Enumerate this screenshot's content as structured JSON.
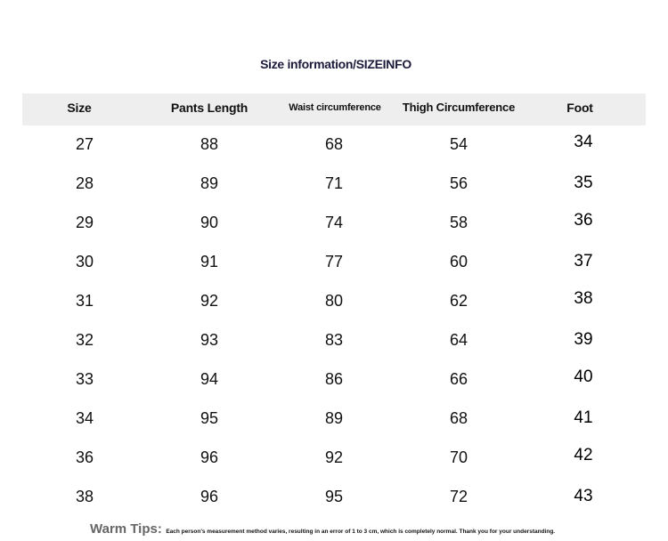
{
  "title": "Size information/SIZEINFO",
  "table": {
    "headers": [
      "Size",
      "Pants Length",
      "Waist circumference",
      "Thigh Circumference",
      "Foot"
    ],
    "rows": [
      [
        "27",
        "88",
        "68",
        "54",
        "34"
      ],
      [
        "28",
        "89",
        "71",
        "56",
        "35"
      ],
      [
        "29",
        "90",
        "74",
        "58",
        "36"
      ],
      [
        "30",
        "91",
        "77",
        "60",
        "37"
      ],
      [
        "31",
        "92",
        "80",
        "62",
        "38"
      ],
      [
        "32",
        "93",
        "83",
        "64",
        "39"
      ],
      [
        "33",
        "94",
        "86",
        "66",
        "40"
      ],
      [
        "34",
        "95",
        "89",
        "68",
        "41"
      ],
      [
        "36",
        "96",
        "92",
        "70",
        "42"
      ],
      [
        "38",
        "96",
        "95",
        "72",
        "43"
      ]
    ]
  },
  "tips": {
    "label": "Warm Tips:",
    "text": "Each person's measurement method varies, resulting in an error of 1 to 3 cm, which is completely normal. Thank you for your understanding."
  },
  "colors": {
    "header_bg": "#eeeeee",
    "title": "#1c1b3c",
    "tips_label": "#666666"
  }
}
